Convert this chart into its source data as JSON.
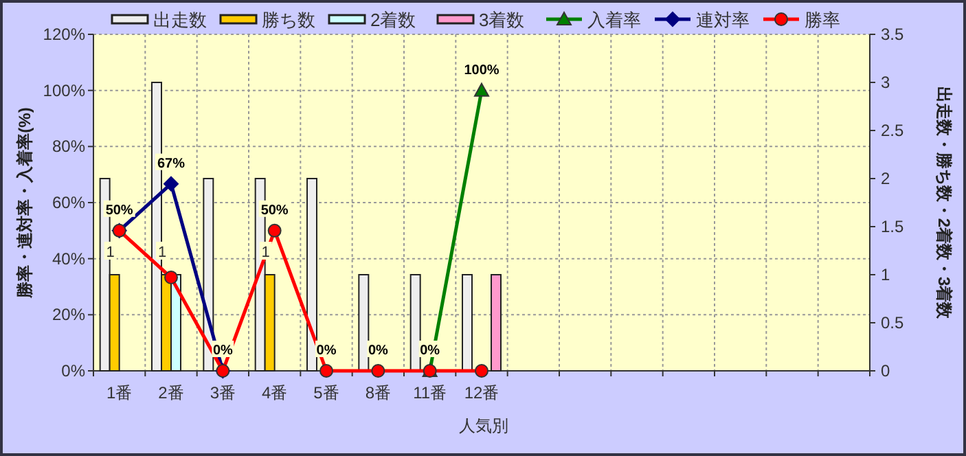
{
  "chart_data": {
    "type": "bar",
    "xlabel": "人気別",
    "ylabel": "勝率・連対率・入着率(%)",
    "y2label": "出走数・勝ち数・2着数・3着数",
    "categories": [
      "1番",
      "2番",
      "3番",
      "4番",
      "5番",
      "8番",
      "11番",
      "12番",
      null,
      null,
      null,
      null,
      null,
      null,
      null
    ],
    "ylim": [
      0,
      120
    ],
    "yticks": [
      {
        "value": 0,
        "label": "0%"
      },
      {
        "value": 20,
        "label": "20%"
      },
      {
        "value": 40,
        "label": "40%"
      },
      {
        "value": 60,
        "label": "60%"
      },
      {
        "value": 80,
        "label": "80%"
      },
      {
        "value": 100,
        "label": "100%"
      },
      {
        "value": 120,
        "label": "120%"
      }
    ],
    "y2lim": [
      0,
      3.5
    ],
    "y2ticks": [
      0,
      0.5,
      1,
      1.5,
      2,
      2.5,
      3,
      3.5
    ],
    "grid": true,
    "legend": "top",
    "series": [
      {
        "name": "出走数",
        "axis": "y2",
        "color": "#eeeeee",
        "values": [
          2,
          3,
          2,
          2,
          2,
          1,
          1,
          1,
          null,
          null,
          null,
          null,
          null,
          null,
          null
        ]
      },
      {
        "name": "勝ち数",
        "axis": "y2",
        "color": "#ffcc00",
        "values": [
          1,
          1,
          0,
          1,
          0,
          0,
          0,
          0,
          null,
          null,
          null,
          null,
          null,
          null,
          null
        ],
        "value_labels": [
          "1",
          "1",
          null,
          "1",
          null,
          null,
          null,
          null,
          null,
          null,
          null,
          null,
          null,
          null,
          null
        ]
      },
      {
        "name": "2着数",
        "axis": "y2",
        "color": "#ccffff",
        "values": [
          0,
          1,
          0,
          0,
          0,
          0,
          0,
          0,
          null,
          null,
          null,
          null,
          null,
          null,
          null
        ]
      },
      {
        "name": "3着数",
        "axis": "y2",
        "color": "#ff99cc",
        "values": [
          0,
          0,
          0,
          0,
          0,
          0,
          0,
          1,
          null,
          null,
          null,
          null,
          null,
          null,
          null
        ]
      },
      {
        "name": "入着率",
        "type": "line",
        "color": "#008000",
        "marker": "triangle",
        "values": [
          null,
          null,
          null,
          null,
          null,
          null,
          0,
          100,
          null,
          null,
          null,
          null,
          null,
          null,
          null
        ],
        "value_labels": [
          null,
          null,
          null,
          null,
          null,
          null,
          null,
          "100%",
          null,
          null,
          null,
          null,
          null,
          null,
          null
        ]
      },
      {
        "name": "連対率",
        "type": "line",
        "color": "#000080",
        "marker": "diamond",
        "values": [
          50,
          66.7,
          0,
          null,
          null,
          null,
          null,
          null,
          null,
          null,
          null,
          null,
          null,
          null,
          null
        ],
        "value_labels": [
          null,
          "67%",
          null,
          null,
          null,
          null,
          null,
          null,
          null,
          null,
          null,
          null,
          null,
          null,
          null
        ]
      },
      {
        "name": "勝率",
        "type": "line",
        "color": "#ff0000",
        "marker": "circle",
        "values": [
          50,
          33.3,
          0,
          50,
          0,
          0,
          0,
          0,
          null,
          null,
          null,
          null,
          null,
          null,
          null
        ],
        "value_labels": [
          "50%",
          null,
          "0%",
          "50%",
          "0%",
          "0%",
          "0%",
          null,
          null,
          null,
          null,
          null,
          null,
          null,
          null
        ]
      }
    ]
  }
}
